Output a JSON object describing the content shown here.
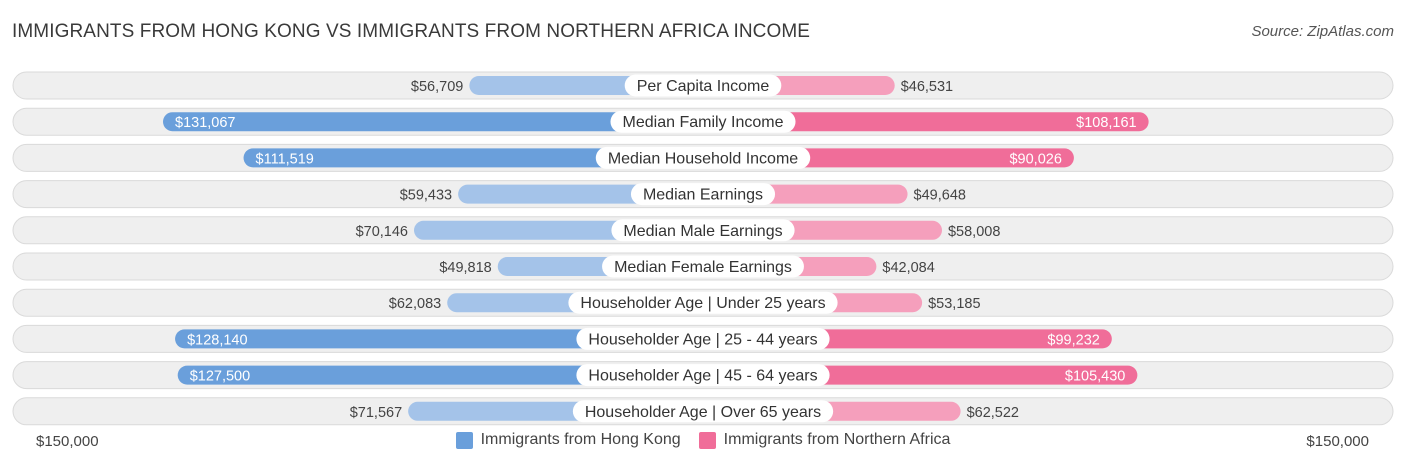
{
  "header": {
    "title": "IMMIGRANTS FROM HONG KONG VS IMMIGRANTS FROM NORTHERN AFRICA INCOME",
    "source": "Source: ZipAtlas.com"
  },
  "colors": {
    "left_light": "#a4c3e9",
    "left_strong": "#6a9fdb",
    "right_light": "#f59fbc",
    "right_strong": "#f06d99",
    "row_bg": "#efefef",
    "row_border": "#dadada"
  },
  "axis": {
    "left_label": "$150,000",
    "right_label": "$150,000"
  },
  "legend": {
    "left": "Immigrants from Hong Kong",
    "right": "Immigrants from Northern Africa"
  },
  "chart_data": {
    "type": "bar",
    "orientation": "diverging-horizontal",
    "title": "IMMIGRANTS FROM HONG KONG VS IMMIGRANTS FROM NORTHERN AFRICA INCOME",
    "xlim": [
      -150000,
      150000
    ],
    "categories": [
      "Per Capita Income",
      "Median Family Income",
      "Median Household Income",
      "Median Earnings",
      "Median Male Earnings",
      "Median Female Earnings",
      "Householder Age | Under 25 years",
      "Householder Age | 25 - 44 years",
      "Householder Age | 45 - 64 years",
      "Householder Age | Over 65 years"
    ],
    "series": [
      {
        "name": "Immigrants from Hong Kong",
        "values": [
          56709,
          131067,
          111519,
          59433,
          70146,
          49818,
          62083,
          128140,
          127500,
          71567
        ],
        "labels": [
          "$56,709",
          "$131,067",
          "$111,519",
          "$59,433",
          "$70,146",
          "$49,818",
          "$62,083",
          "$128,140",
          "$127,500",
          "$71,567"
        ]
      },
      {
        "name": "Immigrants from Northern Africa",
        "values": [
          46531,
          108161,
          90026,
          49648,
          58008,
          42084,
          53185,
          99232,
          105430,
          62522
        ],
        "labels": [
          "$46,531",
          "$108,161",
          "$90,026",
          "$49,648",
          "$58,008",
          "$42,084",
          "$53,185",
          "$99,232",
          "$105,430",
          "$62,522"
        ]
      }
    ],
    "legend_position": "bottom-center"
  }
}
